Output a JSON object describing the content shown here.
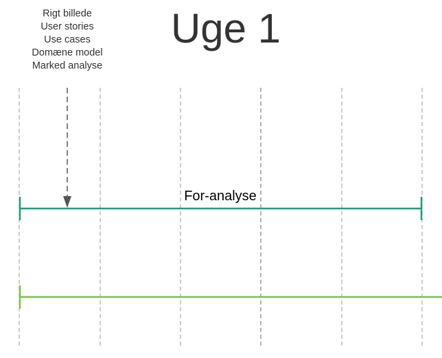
{
  "title": "Uge 1",
  "notes": [
    "Rigt billede",
    "User stories",
    "Use cases",
    "Domæne model",
    "Marked analyse"
  ],
  "phases": [
    {
      "label": "For-analyse",
      "color": "#1e9b7b"
    },
    {
      "label": "",
      "color": "#7cbf4e"
    }
  ],
  "colors": {
    "text": "#333333",
    "gridline": "#999999",
    "arrow": "#555555"
  }
}
